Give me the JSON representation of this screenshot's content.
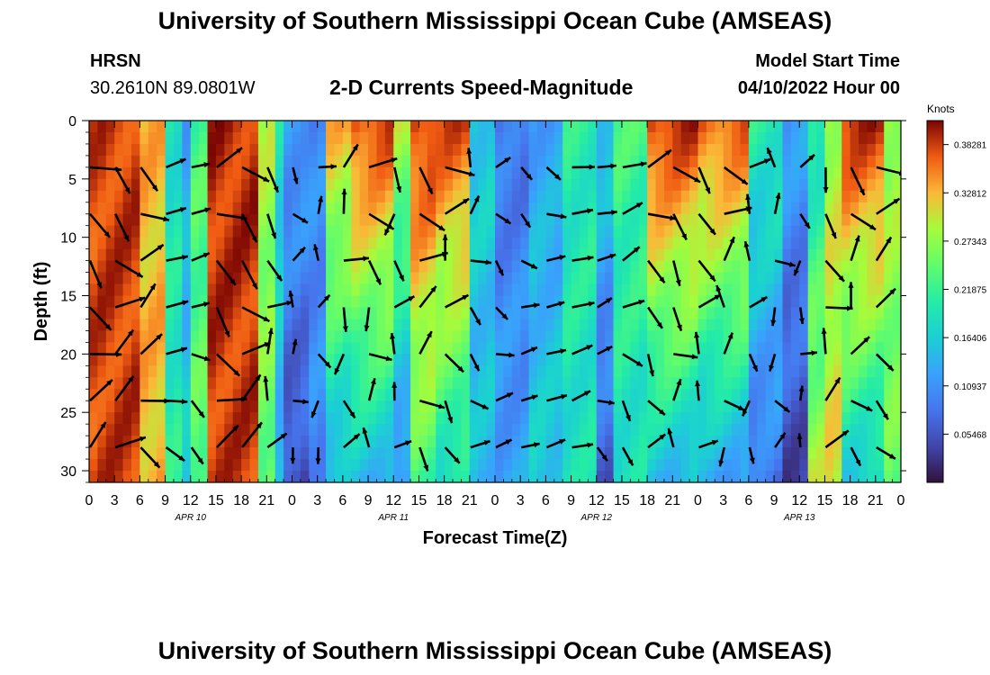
{
  "page_title": "University of Southern Mississippi Ocean Cube (AMSEAS)",
  "station": {
    "name": "HRSN",
    "coords": "30.2610N  89.0801W"
  },
  "product_title": "2-D Currents Speed-Magnitude",
  "model_start": {
    "label": "Model Start Time",
    "value": "04/10/2022 Hour 00"
  },
  "footer_title": "University of Southern Mississippi Ocean Cube (AMSEAS)",
  "chart_data": {
    "type": "heatmap",
    "title": "2-D Currents Speed-Magnitude",
    "xlabel": "Forecast Time(Z)",
    "ylabel": "Depth (ft)",
    "x_hours_range": [
      0,
      96
    ],
    "x_tick_labels": [
      "0",
      "3",
      "6",
      "9",
      "12",
      "15",
      "18",
      "21",
      "0",
      "3",
      "6",
      "9",
      "12",
      "15",
      "18",
      "21",
      "0",
      "3",
      "6",
      "9",
      "12",
      "15",
      "18",
      "21",
      "0",
      "3",
      "6",
      "9",
      "12",
      "15",
      "18",
      "21",
      "0"
    ],
    "day_labels": [
      {
        "label": "APR 10",
        "hour": 12
      },
      {
        "label": "APR 11",
        "hour": 36
      },
      {
        "label": "APR 12",
        "hour": 60
      },
      {
        "label": "APR 13",
        "hour": 84
      }
    ],
    "y_range_ft": [
      0,
      31
    ],
    "y_ticks": [
      0,
      5,
      10,
      15,
      20,
      25,
      30
    ],
    "colorbar": {
      "units": "Knots",
      "min": 0.0,
      "max": 0.41,
      "tick_labels": [
        "0.38281",
        "0.32812",
        "0.27343",
        "0.21875",
        "0.16406",
        "0.10937",
        "0.05468"
      ],
      "tick_values": [
        0.38281,
        0.32812,
        0.27343,
        0.21875,
        0.16406,
        0.10937,
        0.05468
      ]
    },
    "vector_depths_ft": [
      4,
      8,
      12,
      16,
      20,
      24,
      28
    ],
    "vector_hours": [
      0,
      3,
      6,
      9,
      12,
      15,
      18,
      21,
      24,
      27,
      30,
      33,
      36,
      39,
      42,
      45,
      48,
      51,
      54,
      57,
      60,
      63,
      66,
      69,
      72,
      75,
      78,
      81,
      84,
      87,
      90,
      93,
      96
    ]
  }
}
